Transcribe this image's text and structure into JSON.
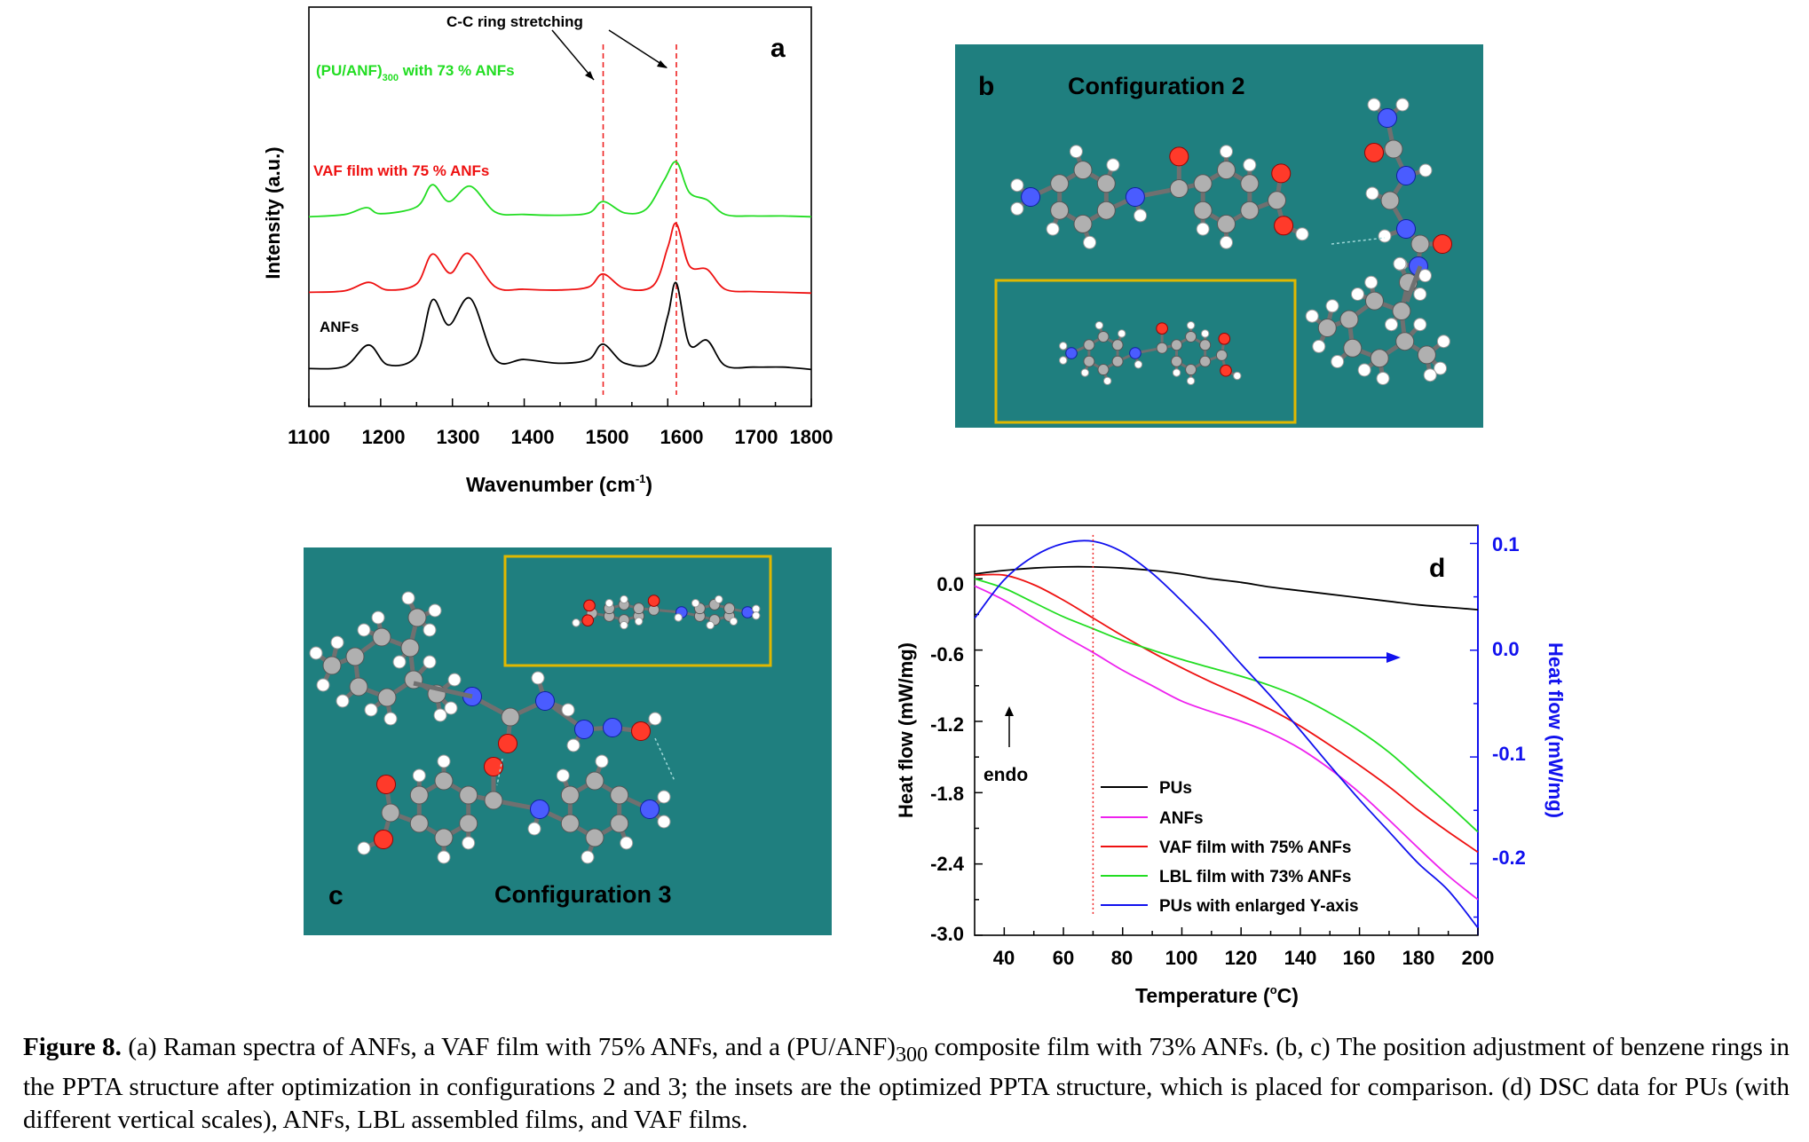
{
  "panel_a": {
    "letter": "a",
    "annotation": "C-C ring stretching",
    "labels": {
      "green_prefix": "(PU/ANF)",
      "green_sub": "300",
      "green_suffix": " with 73 % ANFs",
      "red": "VAF film with 75 % ANFs",
      "black": "ANFs"
    },
    "ylabel": "Intensity (a.u.)",
    "xlabel_prefix": "Wavenumber (cm",
    "xlabel_sup": "-1",
    "xlabel_suffix": ")",
    "xticks": [
      "1100",
      "1200",
      "1300",
      "1400",
      "1500",
      "1600",
      "1700",
      "1800"
    ]
  },
  "panel_b": {
    "letter": "b",
    "title": "Configuration 2"
  },
  "panel_c": {
    "letter": "c",
    "title": "Configuration 3"
  },
  "panel_d": {
    "letter": "d",
    "ylabel_left": "Heat flow (mW/mg)",
    "ylabel_right": "Heat flow (mW/mg)",
    "xlabel_prefix": "Temperature (",
    "xlabel_sup": "o",
    "xlabel_suffix": "C)",
    "endo": "endo",
    "xticks": [
      "40",
      "60",
      "80",
      "100",
      "120",
      "140",
      "160",
      "180",
      "200"
    ],
    "yticks_left": [
      "0.0",
      "-0.6",
      "-1.2",
      "-1.8",
      "-2.4",
      "-3.0"
    ],
    "yticks_right": [
      "0.1",
      "0.0",
      "-0.1",
      "-0.2"
    ],
    "legend": [
      "PUs",
      "ANFs",
      "VAF film with 75% ANFs",
      "LBL film with 73% ANFs",
      "PUs with enlarged Y-axis"
    ]
  },
  "chart_data": [
    {
      "type": "line",
      "panel": "a",
      "xlabel": "Wavenumber (cm-1)",
      "ylabel": "Intensity (a.u.)",
      "xlim": [
        1100,
        1800
      ],
      "colors": {
        "green": "#22dd22",
        "red": "#ee1111",
        "black": "#000000",
        "ref": "#ee2222"
      },
      "reference_lines_x": [
        1510,
        1612
      ],
      "series": [
        {
          "name": "(PU/ANF)300 with 73 % ANFs",
          "color": "#22dd22",
          "offset": 2.0,
          "x": [
            1100,
            1150,
            1180,
            1200,
            1250,
            1272,
            1295,
            1325,
            1360,
            1400,
            1450,
            1490,
            1510,
            1540,
            1570,
            1595,
            1612,
            1630,
            1655,
            1680,
            1720,
            1760,
            1800
          ],
          "y": [
            0.02,
            0.05,
            0.14,
            0.06,
            0.15,
            0.44,
            0.22,
            0.42,
            0.08,
            0.05,
            0.04,
            0.07,
            0.22,
            0.07,
            0.12,
            0.5,
            0.74,
            0.34,
            0.24,
            0.05,
            0.03,
            0.03,
            0.02
          ]
        },
        {
          "name": "VAF film with 75 % ANFs",
          "color": "#ee1111",
          "offset": 1.0,
          "x": [
            1100,
            1150,
            1183,
            1210,
            1250,
            1272,
            1297,
            1322,
            1360,
            1400,
            1450,
            1490,
            1510,
            1540,
            1580,
            1600,
            1612,
            1630,
            1655,
            1680,
            1720,
            1760,
            1800
          ],
          "y": [
            0.03,
            0.05,
            0.16,
            0.06,
            0.14,
            0.53,
            0.28,
            0.54,
            0.1,
            0.07,
            0.06,
            0.1,
            0.27,
            0.08,
            0.12,
            0.62,
            0.93,
            0.38,
            0.33,
            0.07,
            0.04,
            0.03,
            0.02
          ]
        },
        {
          "name": "ANFs",
          "color": "#000000",
          "offset": 0.0,
          "x": [
            1100,
            1150,
            1183,
            1210,
            1250,
            1272,
            1295,
            1325,
            1360,
            1400,
            1450,
            1490,
            1510,
            1540,
            1580,
            1600,
            1612,
            1630,
            1655,
            1680,
            1720,
            1760,
            1800
          ],
          "y": [
            0.03,
            0.06,
            0.34,
            0.08,
            0.2,
            0.93,
            0.6,
            0.95,
            0.15,
            0.15,
            0.1,
            0.15,
            0.35,
            0.1,
            0.13,
            0.72,
            1.15,
            0.35,
            0.4,
            0.07,
            0.05,
            0.05,
            0.02
          ]
        }
      ]
    },
    {
      "type": "line",
      "panel": "d",
      "xlabel": "Temperature (oC)",
      "ylabel": "Heat flow (mW/mg)",
      "y2label": "Heat flow (mW/mg)",
      "xlim": [
        30,
        200
      ],
      "ylim": [
        -3.0,
        0.45
      ],
      "y2lim": [
        -0.267,
        0.117
      ],
      "reference_line_x": 70,
      "series": [
        {
          "name": "PUs",
          "color": "#000000",
          "axis": "left",
          "x": [
            30,
            40,
            50,
            60,
            70,
            80,
            90,
            100,
            110,
            120,
            130,
            140,
            150,
            160,
            170,
            180,
            190,
            200
          ],
          "y": [
            0.04,
            0.07,
            0.09,
            0.1,
            0.1,
            0.09,
            0.07,
            0.04,
            0.0,
            -0.03,
            -0.07,
            -0.1,
            -0.13,
            -0.16,
            -0.19,
            -0.22,
            -0.24,
            -0.26
          ]
        },
        {
          "name": "ANFs",
          "color": "#ee22ee",
          "axis": "left",
          "x": [
            30,
            40,
            50,
            60,
            70,
            80,
            90,
            100,
            110,
            120,
            130,
            140,
            150,
            160,
            170,
            180,
            190,
            200
          ],
          "y": [
            -0.06,
            -0.18,
            -0.33,
            -0.48,
            -0.62,
            -0.77,
            -0.9,
            -1.03,
            -1.12,
            -1.2,
            -1.3,
            -1.43,
            -1.6,
            -1.8,
            -2.03,
            -2.27,
            -2.5,
            -2.7
          ]
        },
        {
          "name": "VAF film with 75% ANFs",
          "color": "#ee1111",
          "axis": "left",
          "x": [
            30,
            40,
            50,
            60,
            70,
            80,
            90,
            100,
            110,
            120,
            130,
            140,
            150,
            160,
            170,
            180,
            190,
            200
          ],
          "y": [
            0.03,
            0.03,
            -0.05,
            -0.18,
            -0.33,
            -0.48,
            -0.62,
            -0.75,
            -0.87,
            -0.98,
            -1.1,
            -1.24,
            -1.4,
            -1.57,
            -1.75,
            -1.95,
            -2.13,
            -2.3
          ]
        },
        {
          "name": "LBL film with 73% ANFs",
          "color": "#22dd22",
          "axis": "left",
          "x": [
            30,
            40,
            50,
            60,
            70,
            80,
            90,
            100,
            110,
            120,
            130,
            140,
            150,
            160,
            170,
            180,
            190,
            200
          ],
          "y": [
            0.0,
            -0.08,
            -0.2,
            -0.32,
            -0.42,
            -0.52,
            -0.6,
            -0.68,
            -0.75,
            -0.82,
            -0.9,
            -1.0,
            -1.13,
            -1.28,
            -1.46,
            -1.68,
            -1.9,
            -2.13
          ]
        },
        {
          "name": "PUs with enlarged Y-axis",
          "color": "#1111ee",
          "axis": "right",
          "x": [
            30,
            40,
            50,
            60,
            70,
            80,
            90,
            100,
            110,
            120,
            130,
            140,
            150,
            160,
            170,
            180,
            190,
            200
          ],
          "y": [
            0.03,
            0.066,
            0.088,
            0.1,
            0.102,
            0.092,
            0.072,
            0.046,
            0.018,
            -0.013,
            -0.043,
            -0.075,
            -0.108,
            -0.14,
            -0.17,
            -0.2,
            -0.225,
            -0.26
          ]
        }
      ]
    }
  ],
  "caption": {
    "label": "Figure 8.",
    "text_1": " (a) Raman spectra of ANFs, a VAF film with 75% ANFs, and a (PU/ANF)",
    "sub": "300",
    "text_2": " composite film with 73% ANFs. (b, c) The position adjustment of benzene rings in the PPTA structure after optimization in configurations 2 and 3; the insets are the optimized PPTA structure, which is placed for comparison. (d) DSC data for PUs (with different vertical scales), ANFs, LBL assembled films, and VAF films."
  }
}
